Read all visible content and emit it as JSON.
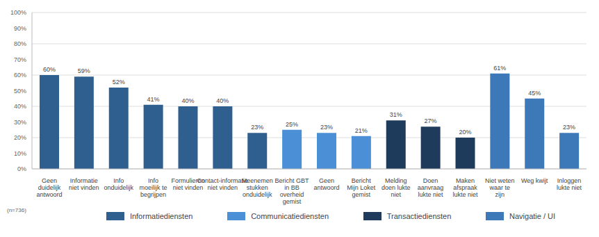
{
  "chart_data": {
    "type": "bar",
    "stacked": true,
    "grid": true,
    "data_labels": true,
    "legend": "bottom",
    "note": "(n=736)",
    "categories": [
      "Geen duidelijk antwoord",
      "Informatie niet vinden",
      "Info onduidelijk",
      "Info moeilijk te begrijpen",
      "Formulieren niet vinden",
      "Contact-informatie niet vinden",
      "Meenemen stukken onduidelijk",
      "Bericht GBT in BB overheid gemist",
      "Geen antwoord",
      "Bericht Mijn Loket gemist",
      "Melding doen lukte niet",
      "Doen aanvraag lukte niet",
      "Maken afspraak lukte niet",
      "Niet weten waar te zijn",
      "Weg kwijt",
      "Inloggen lukte niet"
    ],
    "ylim": [
      0,
      100
    ],
    "yticks": [
      {
        "value": 0,
        "label": "0%"
      },
      {
        "value": 10,
        "label": "10%"
      },
      {
        "value": 20,
        "label": "20%"
      },
      {
        "value": 30,
        "label": "30%"
      },
      {
        "value": 40,
        "label": "40%"
      },
      {
        "value": 50,
        "label": "50%"
      },
      {
        "value": 60,
        "label": "60%"
      },
      {
        "value": 70,
        "label": "70%"
      },
      {
        "value": 80,
        "label": "80%"
      },
      {
        "value": 90,
        "label": "90%"
      },
      {
        "value": 100,
        "label": "100%"
      }
    ],
    "series": [
      {
        "name": "Informatiediensten",
        "color": "#2f5f8f",
        "values": [
          60,
          59,
          52,
          41,
          40,
          40,
          23,
          null,
          null,
          null,
          null,
          null,
          null,
          null,
          null,
          null
        ],
        "value_labels": [
          "60%",
          "59%",
          "52%",
          "41%",
          "40%",
          "40%",
          "23%",
          null,
          null,
          null,
          null,
          null,
          null,
          null,
          null,
          null
        ]
      },
      {
        "name": "Communicatiediensten",
        "color": "#4b8fd6",
        "values": [
          null,
          null,
          null,
          null,
          null,
          null,
          null,
          25,
          23,
          21,
          null,
          null,
          null,
          null,
          null,
          null
        ],
        "value_labels": [
          null,
          null,
          null,
          null,
          null,
          null,
          null,
          "25%",
          "23%",
          "21%",
          null,
          null,
          null,
          null,
          null,
          null
        ]
      },
      {
        "name": "Transactiediensten",
        "color": "#1e3b5c",
        "values": [
          null,
          null,
          null,
          null,
          null,
          null,
          null,
          null,
          null,
          null,
          31,
          27,
          20,
          null,
          null,
          null
        ],
        "value_labels": [
          null,
          null,
          null,
          null,
          null,
          null,
          null,
          null,
          null,
          null,
          "31%",
          "27%",
          "20%",
          null,
          null,
          null
        ]
      },
      {
        "name": "Navigatie / UI",
        "color": "#3d78b9",
        "values": [
          null,
          null,
          null,
          null,
          null,
          null,
          null,
          null,
          null,
          null,
          null,
          null,
          null,
          61,
          45,
          23
        ],
        "value_labels": [
          null,
          null,
          null,
          null,
          null,
          null,
          null,
          null,
          null,
          null,
          null,
          null,
          null,
          "61%",
          "45%",
          "23%"
        ]
      }
    ]
  }
}
